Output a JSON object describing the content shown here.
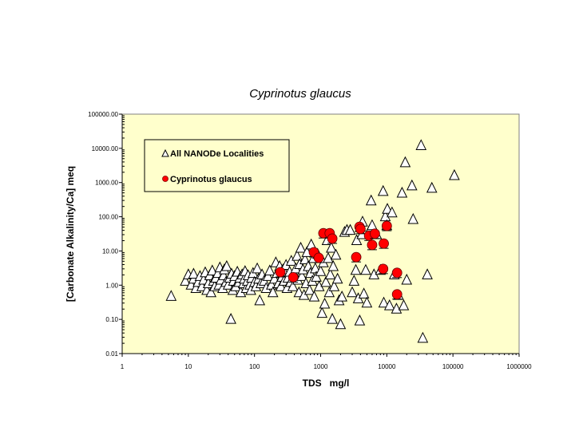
{
  "chart_data": {
    "type": "scatter",
    "title": "Cyprinotus glaucus",
    "xlabel": "TDS   mg/l",
    "ylabel": "[Carbonate Alkalinity/Ca] meq",
    "x_scale": "log",
    "y_scale": "log",
    "xlim": [
      1,
      1000000
    ],
    "ylim": [
      0.01,
      100000
    ],
    "x_ticks": [
      "1",
      "10",
      "100",
      "1000",
      "10000",
      "100000",
      "1000000"
    ],
    "y_ticks": [
      "0.01",
      "0.10",
      "1.00",
      "10.00",
      "100.00",
      "1000.00",
      "10000.00",
      "100000.00"
    ],
    "plot_background": "#ffffcc",
    "grid": false,
    "legend_position": "top-left",
    "series": [
      {
        "name": "All NANODe Localities",
        "marker": "triangle",
        "color": "#ffffff",
        "points": [
          [
            5.5,
            0.47
          ],
          [
            9,
            1.3
          ],
          [
            10,
            2.0
          ],
          [
            11,
            1.0
          ],
          [
            12,
            1.5
          ],
          [
            12,
            2.1
          ],
          [
            13,
            0.8
          ],
          [
            14,
            1.2
          ],
          [
            15,
            1.8
          ],
          [
            16,
            0.9
          ],
          [
            17,
            1.4
          ],
          [
            18,
            2.3
          ],
          [
            19,
            0.7
          ],
          [
            20,
            1.1
          ],
          [
            21,
            1.9
          ],
          [
            22,
            0.6
          ],
          [
            23,
            2.6
          ],
          [
            24,
            1.3
          ],
          [
            25,
            0.9
          ],
          [
            26,
            1.6
          ],
          [
            28,
            2.2
          ],
          [
            29,
            1.0
          ],
          [
            30,
            3.2
          ],
          [
            31,
            1.4
          ],
          [
            33,
            0.8
          ],
          [
            34,
            1.9
          ],
          [
            35,
            2.8
          ],
          [
            37,
            1.2
          ],
          [
            38,
            3.5
          ],
          [
            40,
            1.0
          ],
          [
            42,
            1.6
          ],
          [
            44,
            0.1
          ],
          [
            45,
            2.1
          ],
          [
            47,
            0.7
          ],
          [
            48,
            1.3
          ],
          [
            50,
            1.8
          ],
          [
            52,
            0.9
          ],
          [
            55,
            2.4
          ],
          [
            58,
            1.2
          ],
          [
            60,
            1.6
          ],
          [
            62,
            0.6
          ],
          [
            65,
            2.0
          ],
          [
            68,
            1.1
          ],
          [
            70,
            1.5
          ],
          [
            72,
            2.5
          ],
          [
            75,
            0.8
          ],
          [
            78,
            1.3
          ],
          [
            80,
            1.9
          ],
          [
            85,
            1.0
          ],
          [
            88,
            0.7
          ],
          [
            90,
            1.6
          ],
          [
            95,
            2.2
          ],
          [
            100,
            1.2
          ],
          [
            105,
            0.9
          ],
          [
            110,
            3.0
          ],
          [
            115,
            1.5
          ],
          [
            120,
            0.35
          ],
          [
            125,
            1.1
          ],
          [
            130,
            2.0
          ],
          [
            140,
            1.3
          ],
          [
            150,
            0.8
          ],
          [
            160,
            1.8
          ],
          [
            170,
            2.6
          ],
          [
            180,
            1.0
          ],
          [
            190,
            0.6
          ],
          [
            200,
            1.5
          ],
          [
            210,
            4.5
          ],
          [
            220,
            2.2
          ],
          [
            230,
            1.1
          ],
          [
            240,
            3.5
          ],
          [
            250,
            0.9
          ],
          [
            260,
            1.7
          ],
          [
            270,
            2.8
          ],
          [
            280,
            1.3
          ],
          [
            300,
            3.8
          ],
          [
            310,
            0.8
          ],
          [
            320,
            1.6
          ],
          [
            340,
            2.4
          ],
          [
            350,
            1.2
          ],
          [
            360,
            5.0
          ],
          [
            380,
            0.9
          ],
          [
            400,
            2.0
          ],
          [
            420,
            3.0
          ],
          [
            440,
            7.0
          ],
          [
            450,
            1.4
          ],
          [
            470,
            0.6
          ],
          [
            480,
            4.0
          ],
          [
            500,
            12
          ],
          [
            520,
            1.8
          ],
          [
            540,
            2.8
          ],
          [
            560,
            0.5
          ],
          [
            580,
            5.5
          ],
          [
            600,
            1.1
          ],
          [
            620,
            9.0
          ],
          [
            650,
            3.5
          ],
          [
            680,
            0.7
          ],
          [
            700,
            2.2
          ],
          [
            720,
            15
          ],
          [
            750,
            1.3
          ],
          [
            780,
            6.0
          ],
          [
            800,
            0.45
          ],
          [
            830,
            3.0
          ],
          [
            860,
            1.7
          ],
          [
            900,
            8.0
          ],
          [
            950,
            0.9
          ],
          [
            1000,
            2.5
          ],
          [
            1050,
            0.15
          ],
          [
            1100,
            4.5
          ],
          [
            1150,
            0.28
          ],
          [
            1200,
            1.2
          ],
          [
            1250,
            20
          ],
          [
            1300,
            6.0
          ],
          [
            1350,
            0.6
          ],
          [
            1400,
            2.0
          ],
          [
            1450,
            12
          ],
          [
            1500,
            0.1
          ],
          [
            1550,
            3.5
          ],
          [
            1600,
            0.9
          ],
          [
            1700,
            7.5
          ],
          [
            1800,
            1.5
          ],
          [
            1900,
            0.35
          ],
          [
            2000,
            0.07
          ],
          [
            2100,
            0.45
          ],
          [
            2300,
            35
          ],
          [
            2500,
            40
          ],
          [
            2800,
            40
          ],
          [
            3000,
            0.6
          ],
          [
            3200,
            1.3
          ],
          [
            3400,
            2.7
          ],
          [
            3500,
            20
          ],
          [
            3700,
            0.4
          ],
          [
            3900,
            0.09
          ],
          [
            4000,
            50
          ],
          [
            4200,
            30
          ],
          [
            4300,
            70
          ],
          [
            4500,
            0.55
          ],
          [
            4800,
            2.7
          ],
          [
            5000,
            0.3
          ],
          [
            5500,
            40
          ],
          [
            5800,
            290
          ],
          [
            6000,
            55
          ],
          [
            6400,
            2.0
          ],
          [
            7000,
            30
          ],
          [
            8000,
            2.7
          ],
          [
            8800,
            550
          ],
          [
            9000,
            0.3
          ],
          [
            9500,
            100
          ],
          [
            10000,
            55
          ],
          [
            10200,
            165
          ],
          [
            11000,
            0.25
          ],
          [
            12000,
            130
          ],
          [
            13000,
            2.0
          ],
          [
            14000,
            0.2
          ],
          [
            15000,
            0.5
          ],
          [
            17000,
            490
          ],
          [
            18000,
            0.25
          ],
          [
            19000,
            3800
          ],
          [
            20000,
            1.4
          ],
          [
            24000,
            800
          ],
          [
            25000,
            83
          ],
          [
            33000,
            12000
          ],
          [
            35000,
            0.028
          ],
          [
            41000,
            2.0
          ],
          [
            48000,
            680
          ],
          [
            105000,
            1600
          ]
        ]
      },
      {
        "name": "Cyprinotus glaucus",
        "marker": "circle",
        "color": "#ff0000",
        "points": [
          [
            246,
            2.4
          ],
          [
            385,
            1.7
          ],
          [
            790,
            9.2
          ],
          [
            935,
            6.3
          ],
          [
            1100,
            33
          ],
          [
            1370,
            33
          ],
          [
            1500,
            23
          ],
          [
            3450,
            6.6
          ],
          [
            3870,
            51
          ],
          [
            4000,
            44
          ],
          [
            5400,
            28
          ],
          [
            6600,
            32
          ],
          [
            6000,
            15
          ],
          [
            10000,
            54
          ],
          [
            9000,
            16.5
          ],
          [
            8800,
            3.0
          ],
          [
            14300,
            2.3
          ],
          [
            14300,
            0.54
          ]
        ]
      }
    ]
  }
}
